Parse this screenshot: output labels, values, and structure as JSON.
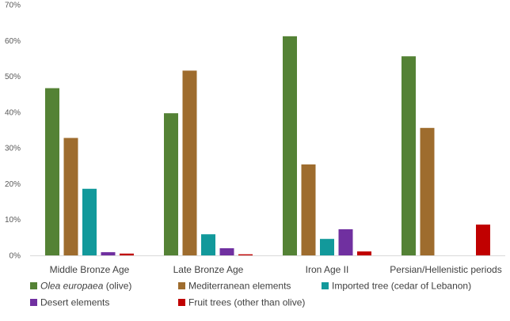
{
  "chart_data": {
    "type": "bar",
    "title": "",
    "xlabel": "",
    "ylabel": "",
    "ylim": [
      0,
      70
    ],
    "yticks": [
      0,
      10,
      20,
      30,
      40,
      50,
      60,
      70
    ],
    "ytick_labels": [
      "0%",
      "10%",
      "20%",
      "30%",
      "40%",
      "50%",
      "60%",
      "70%"
    ],
    "grid": false,
    "legend_position": "bottom",
    "categories": [
      "Middle Bronze Age",
      "Late Bronze Age",
      "Iron Age II",
      "Persian/Hellenistic periods"
    ],
    "series": [
      {
        "name": "Olea europaea (olive)",
        "name_italic": "Olea europaea",
        "name_rest": " (olive)",
        "color": "#548235",
        "values": [
          46.7,
          39.7,
          61.2,
          55.6
        ]
      },
      {
        "name": "Mediterranean elements",
        "color": "#9E6C2E",
        "values": [
          32.8,
          51.6,
          25.4,
          35.6
        ]
      },
      {
        "name": "Imported tree (cedar of Lebanon)",
        "color": "#12999B",
        "values": [
          18.6,
          5.9,
          4.6,
          0
        ]
      },
      {
        "name": "Desert elements",
        "color": "#7030A0",
        "values": [
          0.9,
          2.0,
          7.3,
          0
        ]
      },
      {
        "name": "Fruit trees (other than olive)",
        "color": "#C00000",
        "values": [
          0.5,
          0.3,
          1.1,
          8.6
        ]
      }
    ]
  }
}
